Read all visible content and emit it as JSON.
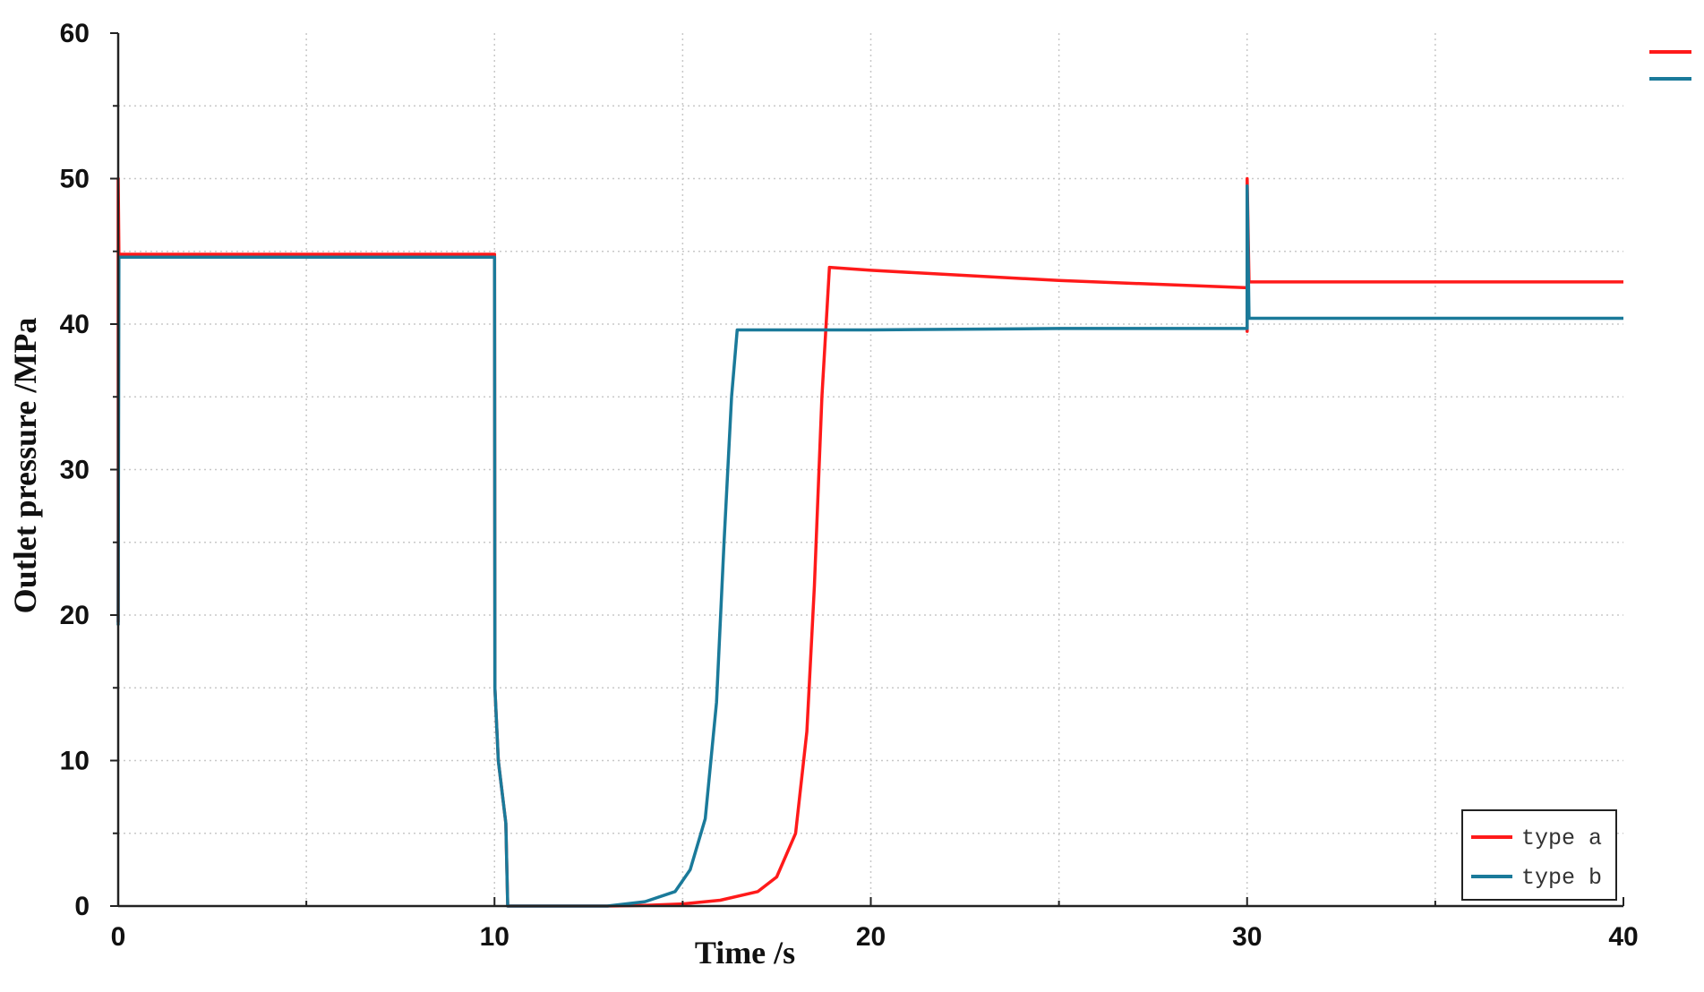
{
  "chart_data": {
    "type": "line",
    "title": "",
    "xlabel": "Time /s",
    "ylabel": "Outlet pressure /MPa",
    "xlim": [
      0,
      40
    ],
    "ylim": [
      0,
      60
    ],
    "x_ticks": [
      0,
      10,
      20,
      30,
      40
    ],
    "y_ticks": [
      0,
      10,
      20,
      30,
      40,
      50,
      60
    ],
    "grid": true,
    "legend_position": "bottom-right",
    "series": [
      {
        "name": "type a",
        "color": "#ff1a1a",
        "points": [
          [
            0,
            19.5
          ],
          [
            0,
            50
          ],
          [
            0.02,
            44.8
          ],
          [
            10,
            44.8
          ],
          [
            10.01,
            15
          ],
          [
            10.1,
            10
          ],
          [
            10.3,
            5.7
          ],
          [
            10.35,
            0
          ],
          [
            13,
            0
          ],
          [
            14,
            0.05
          ],
          [
            15,
            0.15
          ],
          [
            16,
            0.4
          ],
          [
            17,
            1.0
          ],
          [
            17.5,
            2.0
          ],
          [
            18,
            5
          ],
          [
            18.3,
            12
          ],
          [
            18.5,
            22
          ],
          [
            18.7,
            35
          ],
          [
            18.9,
            43.9
          ],
          [
            20,
            43.7
          ],
          [
            25,
            43.0
          ],
          [
            30,
            42.5
          ],
          [
            30,
            39.5
          ],
          [
            30,
            50
          ],
          [
            30.05,
            42.9
          ],
          [
            40,
            42.9
          ]
        ]
      },
      {
        "name": "type b",
        "color": "#1a7a9a",
        "points": [
          [
            0,
            19.3
          ],
          [
            0.02,
            44.6
          ],
          [
            10,
            44.6
          ],
          [
            10.01,
            15
          ],
          [
            10.1,
            10
          ],
          [
            10.3,
            5.7
          ],
          [
            10.35,
            0
          ],
          [
            13,
            0
          ],
          [
            14,
            0.3
          ],
          [
            14.8,
            1.0
          ],
          [
            15.2,
            2.5
          ],
          [
            15.6,
            6
          ],
          [
            15.9,
            14
          ],
          [
            16.1,
            25
          ],
          [
            16.3,
            35
          ],
          [
            16.45,
            39.6
          ],
          [
            20,
            39.6
          ],
          [
            25,
            39.7
          ],
          [
            30,
            39.7
          ],
          [
            30,
            49.5
          ],
          [
            30.05,
            40.4
          ],
          [
            40,
            40.4
          ]
        ]
      }
    ]
  }
}
